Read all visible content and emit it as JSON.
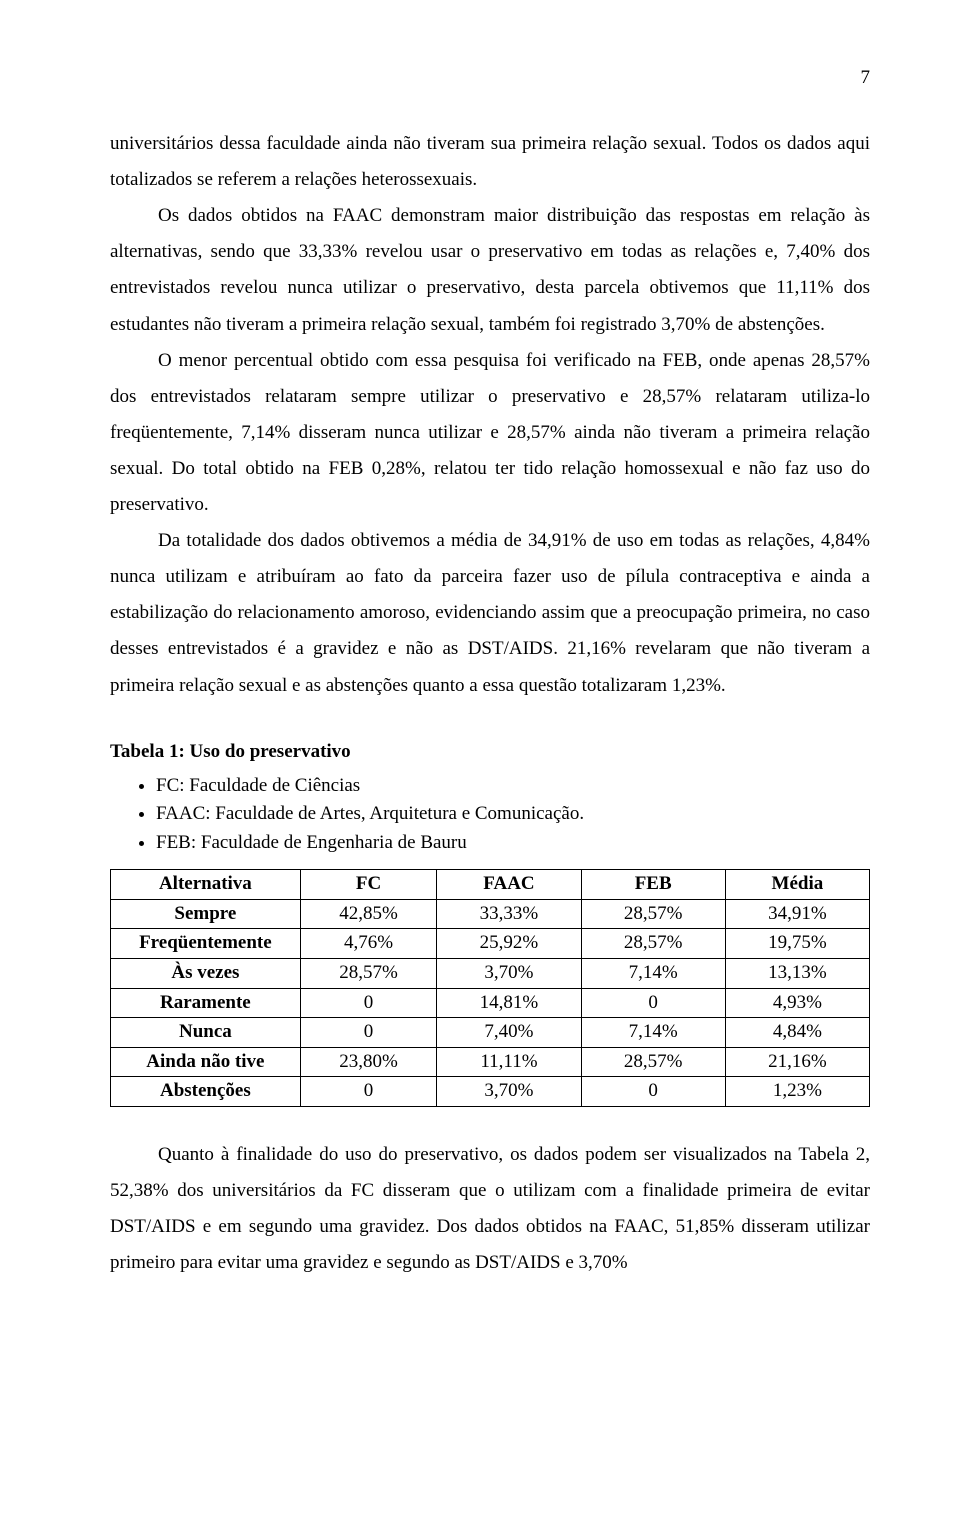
{
  "page_number": "7",
  "paragraphs": {
    "p1": "universitários dessa faculdade ainda não tiveram sua primeira relação sexual. Todos os dados aqui totalizados se referem a relações heterossexuais.",
    "p2": "Os dados obtidos na FAAC demonstram maior distribuição das respostas em relação às alternativas, sendo que 33,33% revelou usar o preservativo em todas as relações e, 7,40% dos entrevistados revelou nunca utilizar o preservativo, desta parcela obtivemos que 11,11% dos estudantes não tiveram a primeira relação sexual, também foi registrado 3,70% de abstenções.",
    "p3": "O menor percentual obtido com essa pesquisa foi verificado na FEB, onde apenas 28,57% dos entrevistados relataram sempre utilizar o preservativo e 28,57% relataram utiliza-lo freqüentemente, 7,14% disseram nunca utilizar e 28,57% ainda não tiveram a primeira relação sexual. Do total obtido na FEB 0,28%, relatou ter tido relação homossexual e não faz uso do preservativo.",
    "p4": "Da totalidade dos dados obtivemos a média de 34,91% de uso em todas as relações, 4,84% nunca utilizam e atribuíram ao fato da parceira fazer uso de pílula contraceptiva e ainda a estabilização do relacionamento amoroso, evidenciando assim que a preocupação primeira, no caso desses entrevistados é a gravidez e não as DST/AIDS. 21,16% revelaram que não tiveram a primeira relação sexual e as abstenções quanto a essa questão totalizaram 1,23%.",
    "p5": "Quanto à finalidade do uso do preservativo, os dados podem ser visualizados na Tabela 2, 52,38% dos universitários da FC disseram que o utilizam com a finalidade primeira de evitar DST/AIDS e em segundo uma gravidez. Dos dados obtidos na FAAC, 51,85% disseram utilizar primeiro para evitar uma gravidez e segundo as DST/AIDS e 3,70%"
  },
  "table_section": {
    "title": "Tabela 1: Uso do preservativo",
    "bullets": [
      "FC: Faculdade de Ciências",
      "FAAC: Faculdade de Artes, Arquitetura e Comunicação.",
      "FEB: Faculdade de Engenharia de Bauru"
    ]
  },
  "table": {
    "headers": [
      "Alternativa",
      "FC",
      "FAAC",
      "FEB",
      "Média"
    ],
    "rows": [
      [
        "Sempre",
        "42,85%",
        "33,33%",
        "28,57%",
        "34,91%"
      ],
      [
        "Freqüentemente",
        "4,76%",
        "25,92%",
        "28,57%",
        "19,75%"
      ],
      [
        "Às vezes",
        "28,57%",
        "3,70%",
        "7,14%",
        "13,13%"
      ],
      [
        "Raramente",
        "0",
        "14,81%",
        "0",
        "4,93%"
      ],
      [
        "Nunca",
        "0",
        "7,40%",
        "7,14%",
        "4,84%"
      ],
      [
        "Ainda não tive",
        "23,80%",
        "11,11%",
        "28,57%",
        "21,16%"
      ],
      [
        "Abstenções",
        "0",
        "3,70%",
        "0",
        "1,23%"
      ]
    ],
    "col_widths": [
      "25%",
      "18%",
      "19%",
      "19%",
      "19%"
    ]
  }
}
